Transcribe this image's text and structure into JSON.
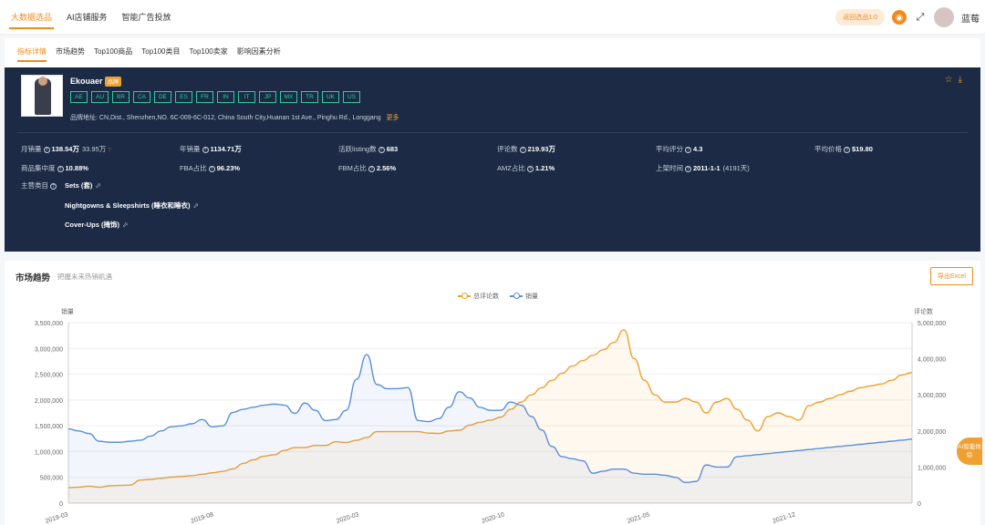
{
  "topnav": {
    "items": [
      {
        "label": "大数据选品",
        "active": true
      },
      {
        "label": "AI店铺服务",
        "active": false
      },
      {
        "label": "智能广告投放",
        "active": false
      }
    ],
    "return_label": "返回选品1.0",
    "username": "蓝莓"
  },
  "tabs": [
    {
      "label": "指标详情",
      "active": true
    },
    {
      "label": "市场趋势",
      "active": false
    },
    {
      "label": "Top100商品",
      "active": false
    },
    {
      "label": "Top100类目",
      "active": false
    },
    {
      "label": "Top100卖家",
      "active": false
    },
    {
      "label": "影响因素分析",
      "active": false
    }
  ],
  "brand": {
    "name": "Ekouaer",
    "badge": "品牌",
    "countries": [
      "AE",
      "AU",
      "BR",
      "CA",
      "DE",
      "ES",
      "FR",
      "IN",
      "IT",
      "JP",
      "MX",
      "TR",
      "UK",
      "US"
    ],
    "address_label": "品牌地址:",
    "address": "CN,Dist., Shenzhen,NO. 6C-009-6C-012, China South City,Huanan 1st Ave., Pinghu Rd., Longgang",
    "more": "更多"
  },
  "stats": {
    "monthly_sales": {
      "label": "月销量",
      "value": "138.54万",
      "sub": "33.95万"
    },
    "yearly_sales": {
      "label": "年销量",
      "value": "1134.71万"
    },
    "listing_count": {
      "label": "活跃listing数",
      "value": "683"
    },
    "review_count": {
      "label": "评论数",
      "value": "219.93万"
    },
    "avg_rating": {
      "label": "平均评分",
      "value": "4.3"
    },
    "avg_price": {
      "label": "平均价格",
      "value": "$19.80"
    },
    "concentration": {
      "label": "商品集中度",
      "value": "10.88%"
    },
    "fba_ratio": {
      "label": "FBA占比",
      "value": "96.23%"
    },
    "fbm_ratio": {
      "label": "FBM占比",
      "value": "2.56%"
    },
    "amz_ratio": {
      "label": "AMZ占比",
      "value": "1.21%"
    },
    "listed_time": {
      "label": "上架时间",
      "value": "2011-1-1",
      "sub": "(4191天)"
    },
    "main_categories": {
      "label": "主营类目",
      "items": [
        "Sets (套)",
        "Nightgowns & Sleepshirts (睡衣和睡衣)",
        "Cover-Ups (掩饰)"
      ]
    }
  },
  "market": {
    "title": "市场趋势",
    "subtitle": "把握未来热销机遇",
    "export_label": "导出Excel",
    "fab_label": "AI智能体验",
    "colors": {
      "reviews": "#f0a030",
      "sales": "#5b8fd9"
    }
  },
  "chart_data": {
    "type": "line",
    "x_ticks": [
      "2019-03",
      "2019-08",
      "2020-03",
      "2020-10",
      "2021-05",
      "2021-12"
    ],
    "left_axis": {
      "label": "销量",
      "ylim": [
        0,
        3500000
      ],
      "ticks": [
        "0",
        "500,000",
        "1,000,000",
        "1,500,000",
        "2,000,000",
        "2,500,000",
        "3,000,000",
        "3,500,000"
      ]
    },
    "right_axis": {
      "label": "评论数",
      "ylim": [
        0,
        5000000
      ],
      "ticks": [
        "0",
        "1,000,000",
        "2,000,000",
        "3,000,000",
        "4,000,000",
        "5,000,000"
      ]
    },
    "series": [
      {
        "name": "总评论数",
        "axis": "right",
        "color": "#f0a030",
        "area": true,
        "values": [
          430000,
          440000,
          470000,
          440000,
          480000,
          490000,
          500000,
          640000,
          660000,
          690000,
          720000,
          740000,
          760000,
          800000,
          840000,
          880000,
          950000,
          1100000,
          1200000,
          1300000,
          1340000,
          1460000,
          1540000,
          1540000,
          1600000,
          1600000,
          1700000,
          1680000,
          1740000,
          1820000,
          1980000,
          1980000,
          1980000,
          1980000,
          1980000,
          1940000,
          1930000,
          2000000,
          2020000,
          2160000,
          2240000,
          2300000,
          2380000,
          2600000,
          2800000,
          3000000,
          3200000,
          3400000,
          3600000,
          3800000,
          3950000,
          4100000,
          4250000,
          4450000,
          4800000,
          4000000,
          3400000,
          3000000,
          2800000,
          2800000,
          2900000,
          2800000,
          2500000,
          2800000,
          2900000,
          2600000,
          2300000,
          2000000,
          2400000,
          2500000,
          2400000,
          2300000,
          2700000,
          2800000,
          2900000,
          3000000,
          3100000,
          3200000,
          3250000,
          3300000,
          3400000,
          3550000,
          3620000
        ],
        "note": ""
      }
    ]
  }
}
